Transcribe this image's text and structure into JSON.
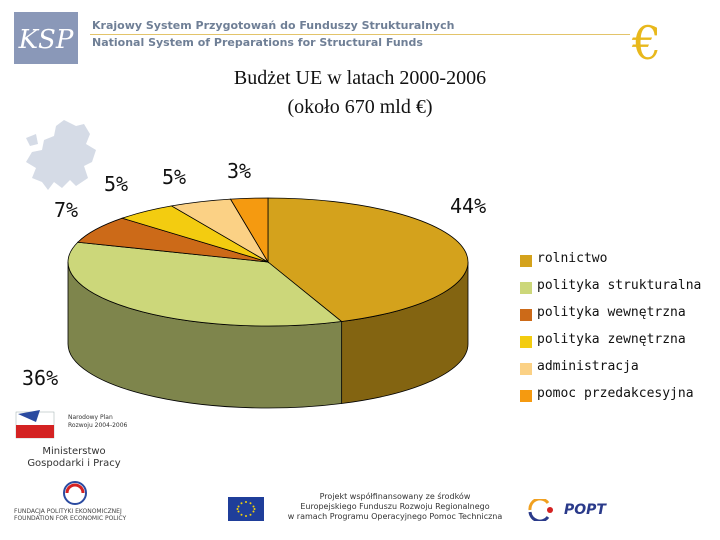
{
  "header": {
    "org_name_pl": "Krajowy System Przygotowań do Funduszy Strukturalnych",
    "org_name_en": "National System of Preparations for Structural Funds",
    "logo_text": "KSP",
    "currency_symbol": "€"
  },
  "chart_data": {
    "type": "pie",
    "title": "Budżet UE w latach 2000-2006",
    "subtitle": "(około 670 mld €)",
    "three_d": true,
    "legend_position": "right",
    "slices": [
      {
        "label": "rolnictwo",
        "value": 44,
        "display": "44%",
        "color": "#d4a21c"
      },
      {
        "label": "polityka strukturalna",
        "value": 36,
        "display": "36%",
        "color": "#ccd77a"
      },
      {
        "label": "polityka wewnętrzna",
        "value": 7,
        "display": "7%",
        "color": "#cc6a18"
      },
      {
        "label": "polityka zewnętrzna",
        "value": 5,
        "display": "5%",
        "color": "#f3cc10"
      },
      {
        "label": "administracja",
        "value": 5,
        "display": "5%",
        "color": "#fbd185"
      },
      {
        "label": "pomoc przedakcesyjna",
        "value": 3,
        "display": "3%",
        "color": "#f59a10"
      }
    ]
  },
  "footer": {
    "npr_line1": "Narodowy Plan",
    "npr_line2": "Rozwoju 2004-2006",
    "ministry_line1": "Ministerstwo",
    "ministry_line2": "Gospodarki i Pracy",
    "foundation_line1": "FUNDACJA POLITYKI EKONOMICZNEJ",
    "foundation_line2": "FOUNDATION FOR ECONOMIC POLICY",
    "project_line1": "Projekt współfinansowany ze środków",
    "project_line2": "Europejskiego Funduszu Rozwoju Regionalnego",
    "project_line3": "w ramach Programu Operacyjnego Pomoc Techniczna",
    "popt_text": "POPT"
  }
}
